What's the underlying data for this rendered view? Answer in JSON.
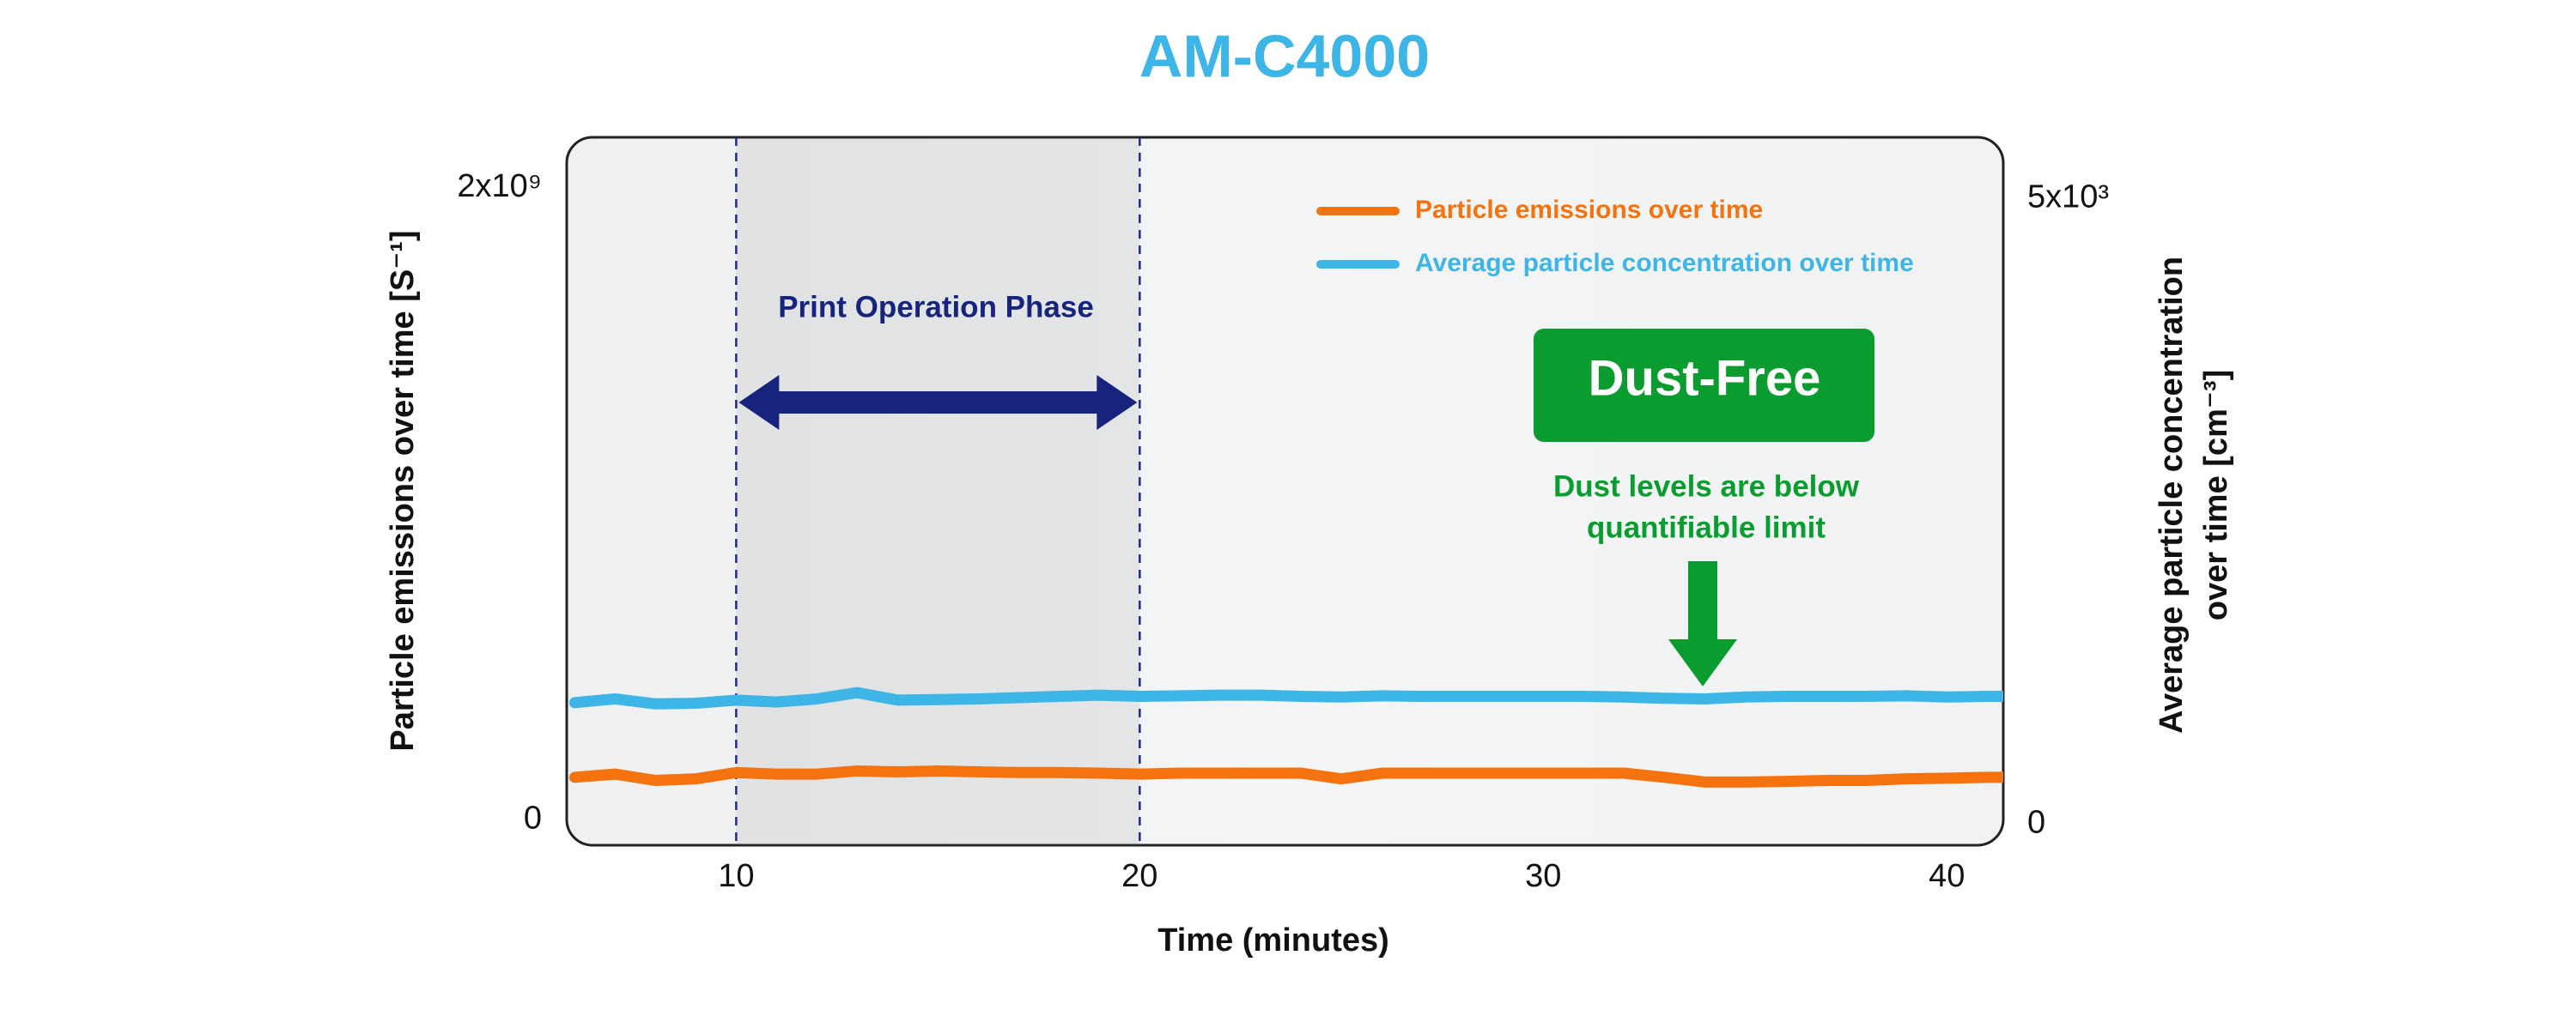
{
  "chart_data": {
    "type": "line",
    "title": "AM-C4000",
    "xlabel": "Time (minutes)",
    "ylabel": "Particle emissions over time [S⁻¹]",
    "y2label": [
      "Average particle concentration",
      "over time [cm⁻³]"
    ],
    "x": [
      6,
      7,
      8,
      9,
      10,
      11,
      12,
      13,
      14,
      15,
      16,
      17,
      18,
      19,
      20,
      21,
      22,
      23,
      24,
      25,
      26,
      27,
      28,
      29,
      30,
      31,
      32,
      33,
      34,
      35,
      36,
      37,
      38,
      39,
      40,
      41,
      41.4
    ],
    "xlim": [
      5.8,
      41.4
    ],
    "xticks": [
      10,
      20,
      30,
      40
    ],
    "ylim": [
      -80000000,
      2160000000
    ],
    "yticks": [
      0,
      {
        "value": 2000000000,
        "label": "2x10⁹"
      }
    ],
    "y2lim": [
      -170,
      5490
    ],
    "y2ticks": [
      0,
      {
        "value": 5000,
        "label": "5x10³"
      }
    ],
    "legend": "top-right",
    "series": [
      {
        "name": "Particle emissions over time",
        "color": "#f5730f",
        "axis": "y",
        "values": [
          135000000,
          145000000,
          125000000,
          130000000,
          150000000,
          145000000,
          145000000,
          155000000,
          152000000,
          155000000,
          152000000,
          150000000,
          150000000,
          148000000,
          145000000,
          148000000,
          148000000,
          148000000,
          148000000,
          130000000,
          148000000,
          148000000,
          148000000,
          148000000,
          148000000,
          148000000,
          148000000,
          135000000,
          120000000,
          120000000,
          122000000,
          125000000,
          125000000,
          130000000,
          132000000,
          135000000,
          135000000
        ]
      },
      {
        "name": "Average particle concentration over time",
        "color": "#3db5e6",
        "axis": "y2",
        "values": [
          970,
          1000,
          960,
          965,
          990,
          975,
          1000,
          1050,
          990,
          995,
          1000,
          1010,
          1020,
          1030,
          1020,
          1025,
          1030,
          1030,
          1020,
          1015,
          1025,
          1020,
          1020,
          1020,
          1020,
          1020,
          1015,
          1005,
          1000,
          1015,
          1020,
          1020,
          1020,
          1025,
          1015,
          1020,
          1020
        ]
      }
    ],
    "phase": {
      "label": "Print Operation Phase",
      "x": [
        10,
        20
      ]
    },
    "badge": "Dust-Free",
    "note": [
      "Dust levels are below",
      "quantifiable limit"
    ]
  }
}
